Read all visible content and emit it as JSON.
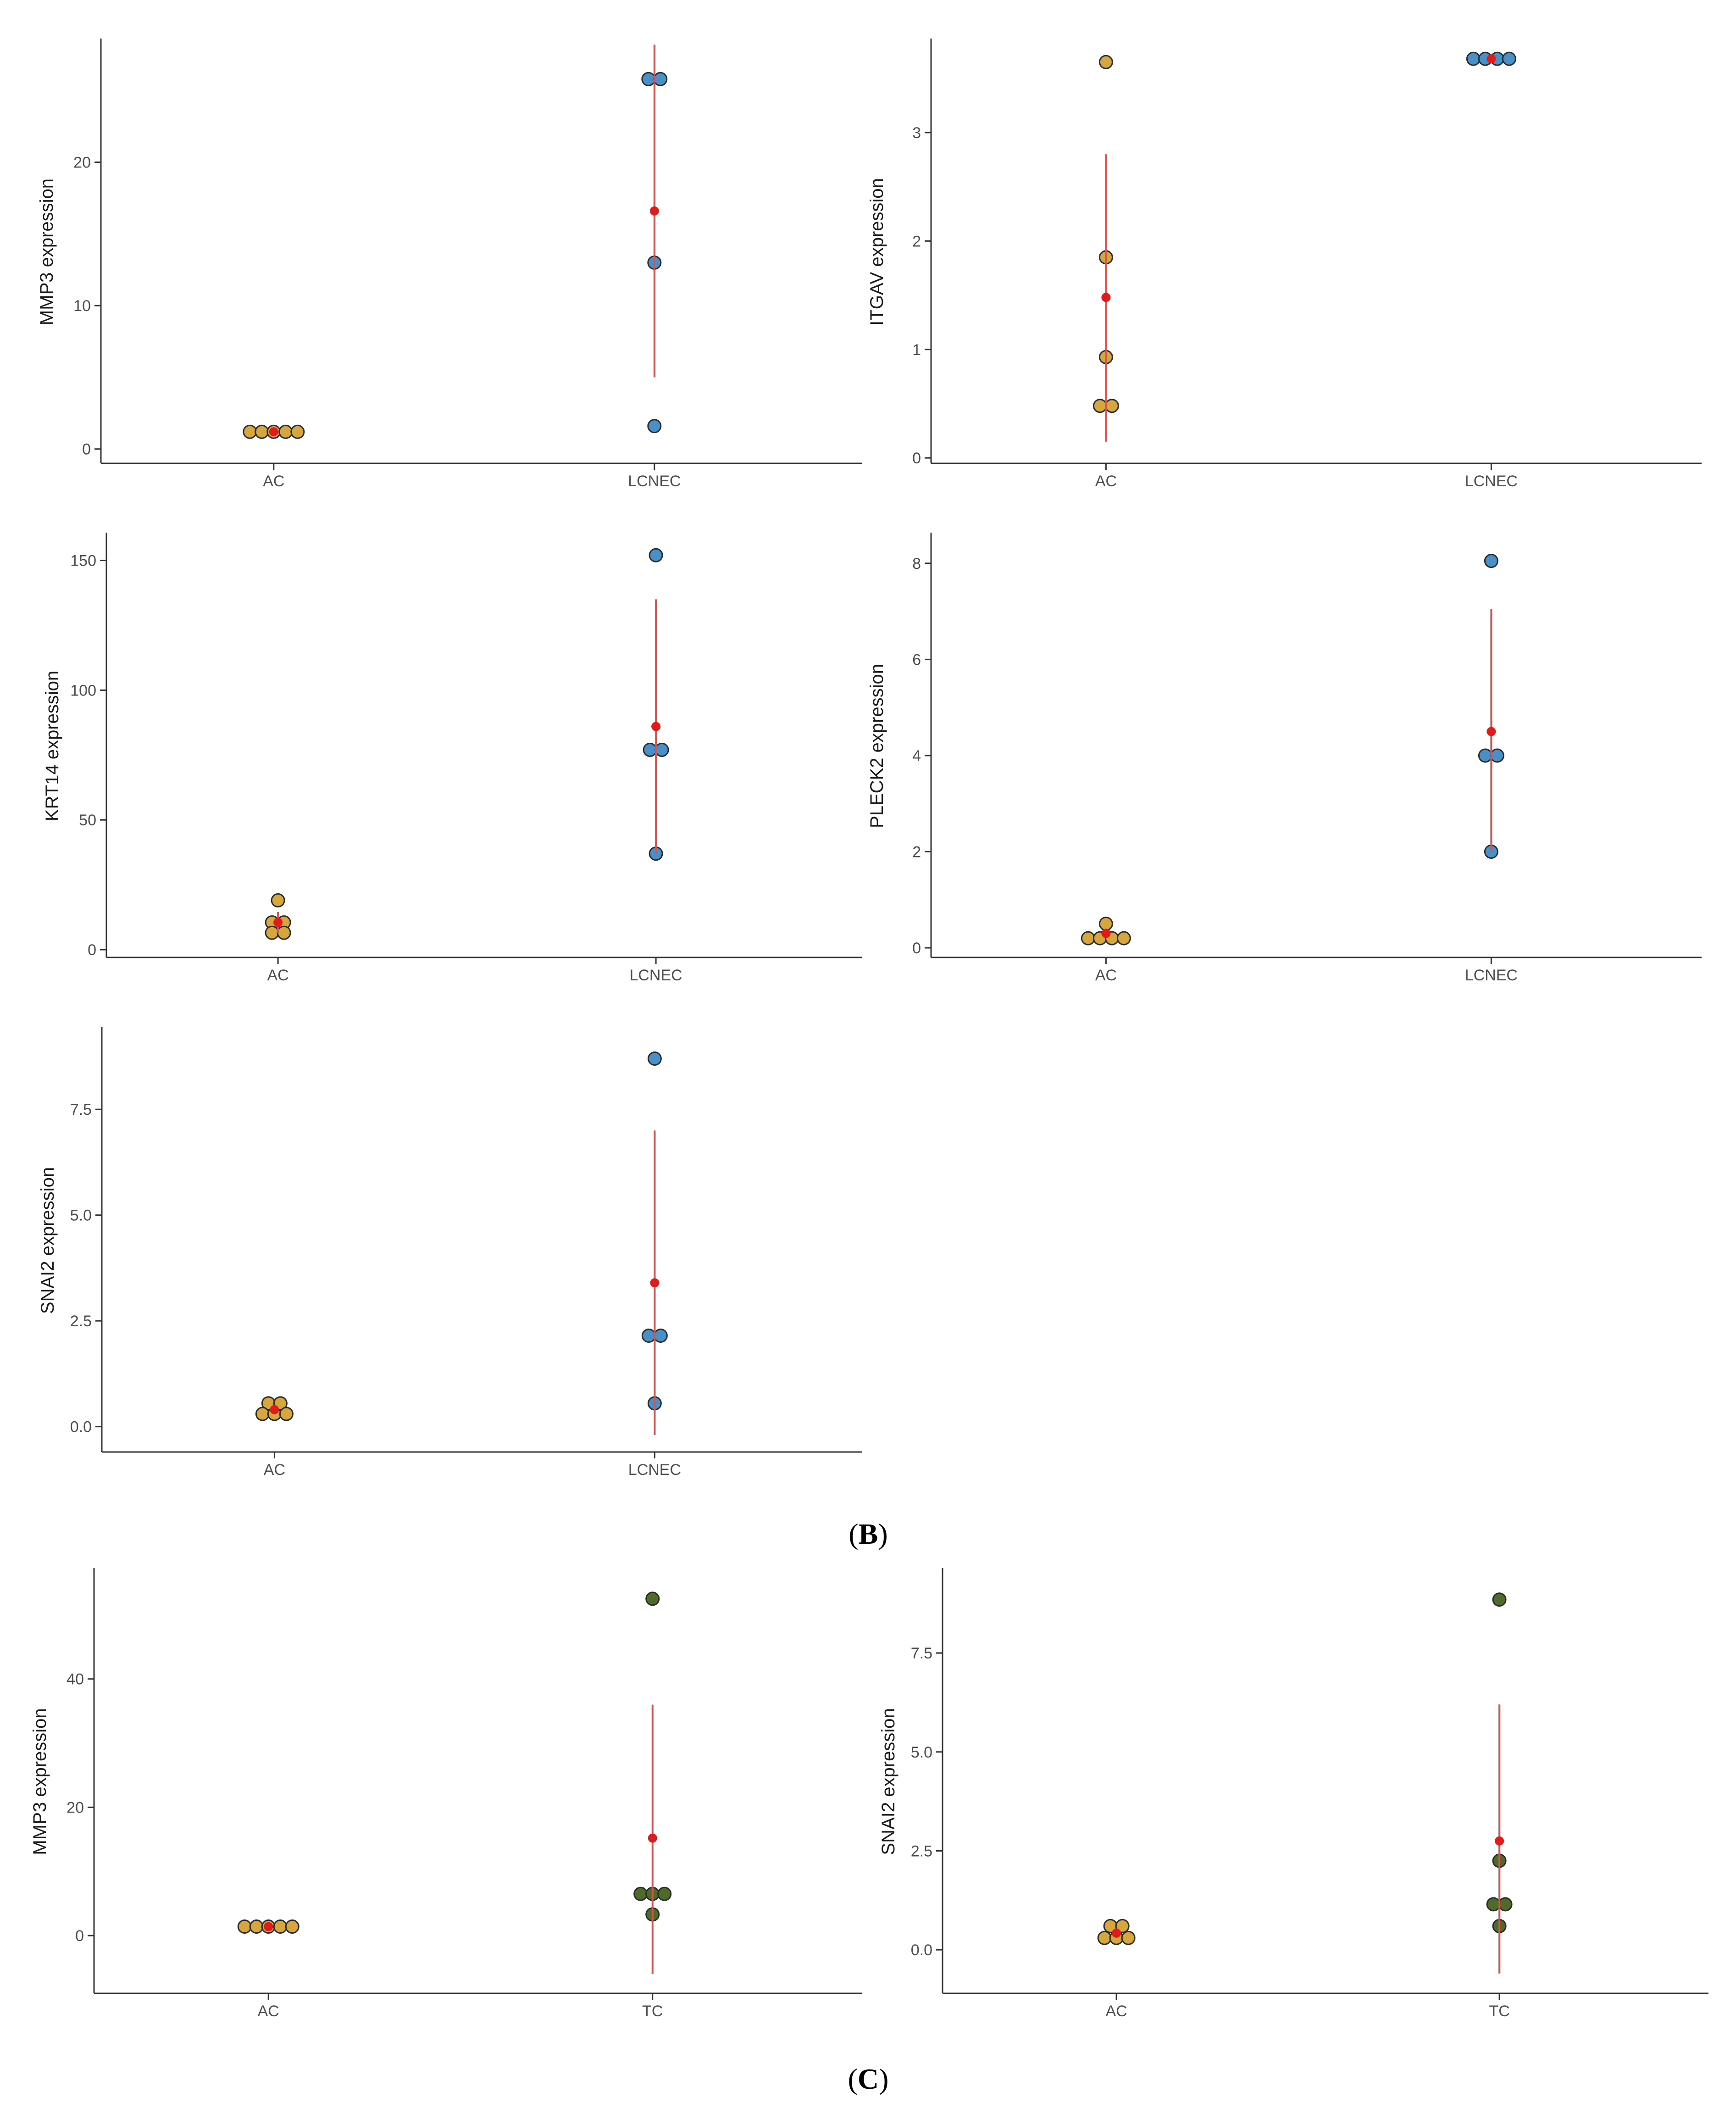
{
  "panel_labels": {
    "b": "B",
    "c": "C"
  },
  "colors": {
    "AC": "#d6a63f",
    "LCNEC": "#4a90c8",
    "TC": "#4f6b2a",
    "mean": "#e01b1b",
    "errorbar": "#d9534f",
    "outline": "#2b2b2b"
  },
  "chart_data": [
    {
      "type": "scatter",
      "ylabel": "MMP3 expression",
      "categories": [
        "AC",
        "LCNEC"
      ],
      "ylim": [
        -1,
        28.5
      ],
      "yticks": [
        0,
        10,
        20
      ],
      "tick_labels": [
        "0",
        "10",
        "20"
      ],
      "points": [
        {
          "group": "AC",
          "values": [
            1.2,
            1.2,
            1.2,
            1.2,
            1.2
          ]
        },
        {
          "group": "LCNEC",
          "values": [
            25.8,
            25.8,
            13,
            1.6
          ]
        }
      ],
      "summary": [
        {
          "group": "AC",
          "mean": 1.2,
          "lower": 1.2,
          "upper": 1.2
        },
        {
          "group": "LCNEC",
          "mean": 16.6,
          "lower": 5.0,
          "upper": 28.2
        }
      ]
    },
    {
      "type": "scatter",
      "ylabel": "ITGAV expression",
      "categories": [
        "AC",
        "LCNEC"
      ],
      "ylim": [
        -0.05,
        3.85
      ],
      "yticks": [
        0,
        1,
        2,
        3
      ],
      "tick_labels": [
        "0",
        "1",
        "2",
        "3"
      ],
      "points": [
        {
          "group": "AC",
          "values": [
            3.65,
            1.85,
            0.93,
            0.48,
            0.48
          ]
        },
        {
          "group": "LCNEC",
          "values": [
            3.68,
            3.68,
            3.68,
            3.68
          ]
        }
      ],
      "summary": [
        {
          "group": "AC",
          "mean": 1.48,
          "lower": 0.15,
          "upper": 2.8
        },
        {
          "group": "LCNEC",
          "mean": 3.68,
          "lower": 3.68,
          "upper": 3.68
        }
      ]
    },
    {
      "type": "scatter",
      "ylabel": "KRT14 expression",
      "categories": [
        "AC",
        "LCNEC"
      ],
      "ylim": [
        -3,
        160
      ],
      "yticks": [
        0,
        50,
        100,
        150
      ],
      "tick_labels": [
        "0",
        "50",
        "100",
        "150"
      ],
      "points": [
        {
          "group": "AC",
          "values": [
            19,
            10.5,
            10.5,
            6.5,
            6.5
          ]
        },
        {
          "group": "LCNEC",
          "values": [
            152,
            77,
            77,
            37
          ]
        }
      ],
      "summary": [
        {
          "group": "AC",
          "mean": 10.5,
          "lower": 6.5,
          "upper": 14.5
        },
        {
          "group": "LCNEC",
          "mean": 86,
          "lower": 37,
          "upper": 135
        }
      ]
    },
    {
      "type": "scatter",
      "ylabel": "PLECK2 expression",
      "categories": [
        "AC",
        "LCNEC"
      ],
      "ylim": [
        -0.2,
        8.6
      ],
      "yticks": [
        0,
        2,
        4,
        6,
        8
      ],
      "tick_labels": [
        "0",
        "2",
        "4",
        "6",
        "8"
      ],
      "points": [
        {
          "group": "AC",
          "values": [
            0.5,
            0.2,
            0.2,
            0.2,
            0.2
          ]
        },
        {
          "group": "LCNEC",
          "values": [
            8.05,
            4.0,
            4.0,
            2.0
          ]
        }
      ],
      "summary": [
        {
          "group": "AC",
          "mean": 0.3,
          "lower": 0.2,
          "upper": 0.4
        },
        {
          "group": "LCNEC",
          "mean": 4.5,
          "lower": 2.0,
          "upper": 7.05
        }
      ]
    },
    {
      "type": "scatter",
      "ylabel": "SNAI2 expression",
      "categories": [
        "AC",
        "LCNEC"
      ],
      "ylim": [
        -0.6,
        9.4
      ],
      "yticks": [
        0.0,
        2.5,
        5.0,
        7.5
      ],
      "tick_labels": [
        "0.0",
        "2.5",
        "5.0",
        "7.5"
      ],
      "points": [
        {
          "group": "AC",
          "values": [
            0.55,
            0.55,
            0.3,
            0.3,
            0.3
          ]
        },
        {
          "group": "LCNEC",
          "values": [
            8.7,
            2.15,
            2.15,
            0.55
          ]
        }
      ],
      "summary": [
        {
          "group": "AC",
          "mean": 0.4,
          "lower": 0.3,
          "upper": 0.5
        },
        {
          "group": "LCNEC",
          "mean": 3.4,
          "lower": -0.2,
          "upper": 7.0
        }
      ]
    },
    {
      "type": "scatter",
      "ylabel": "MMP3 expression",
      "categories": [
        "AC",
        "TC"
      ],
      "ylim": [
        -9,
        57
      ],
      "yticks": [
        0,
        20,
        40
      ],
      "tick_labels": [
        "0",
        "20",
        "40"
      ],
      "points": [
        {
          "group": "AC",
          "values": [
            1.4,
            1.4,
            1.4,
            1.4,
            1.4
          ]
        },
        {
          "group": "TC",
          "values": [
            52.5,
            6.5,
            6.5,
            6.5,
            3.3
          ]
        }
      ],
      "summary": [
        {
          "group": "AC",
          "mean": 1.4,
          "lower": 1.4,
          "upper": 1.4
        },
        {
          "group": "TC",
          "mean": 15.2,
          "lower": -6.0,
          "upper": 36.0
        }
      ]
    },
    {
      "type": "scatter",
      "ylabel": "SNAI2 expression",
      "categories": [
        "AC",
        "TC"
      ],
      "ylim": [
        -1.1,
        9.6
      ],
      "yticks": [
        0.0,
        2.5,
        5.0,
        7.5
      ],
      "tick_labels": [
        "0.0",
        "2.5",
        "5.0",
        "7.5"
      ],
      "points": [
        {
          "group": "AC",
          "values": [
            0.6,
            0.6,
            0.3,
            0.3,
            0.3
          ]
        },
        {
          "group": "TC",
          "values": [
            8.85,
            2.25,
            1.15,
            1.15,
            0.6
          ]
        }
      ],
      "summary": [
        {
          "group": "AC",
          "mean": 0.42,
          "lower": 0.32,
          "upper": 0.52
        },
        {
          "group": "TC",
          "mean": 2.75,
          "lower": -0.6,
          "upper": 6.2
        }
      ]
    }
  ]
}
